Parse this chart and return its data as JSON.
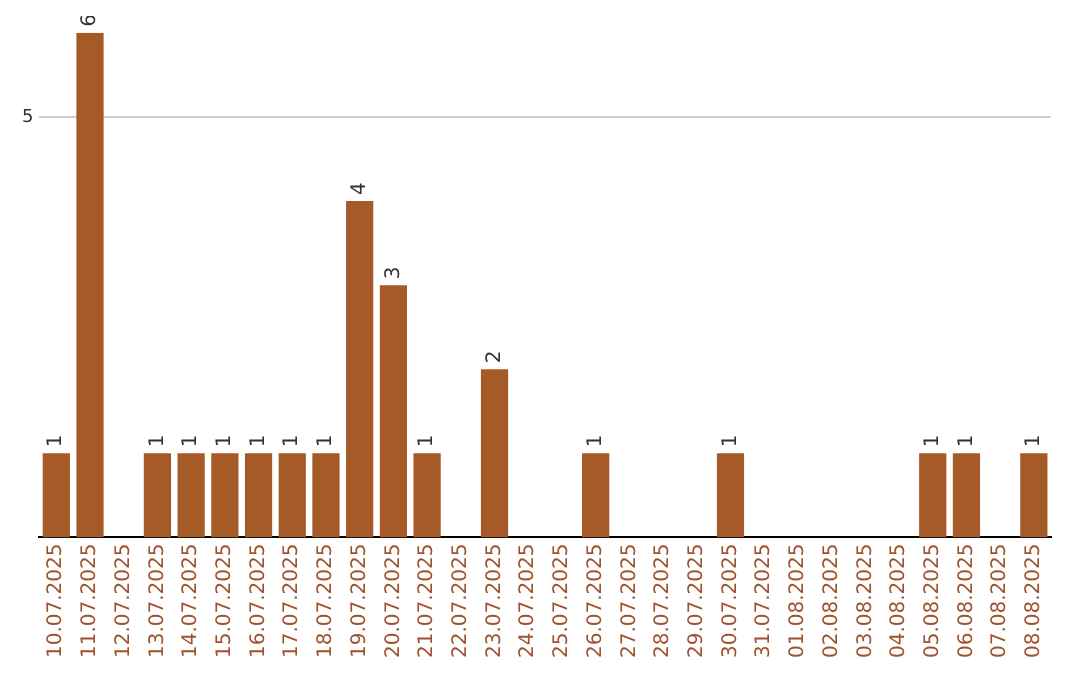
{
  "chart_data": {
    "type": "bar",
    "categories": [
      "10.07.2025",
      "11.07.2025",
      "12.07.2025",
      "13.07.2025",
      "14.07.2025",
      "15.07.2025",
      "16.07.2025",
      "17.07.2025",
      "18.07.2025",
      "19.07.2025",
      "20.07.2025",
      "21.07.2025",
      "22.07.2025",
      "23.07.2025",
      "24.07.2025",
      "25.07.2025",
      "26.07.2025",
      "27.07.2025",
      "28.07.2025",
      "29.07.2025",
      "30.07.2025",
      "31.07.2025",
      "01.08.2025",
      "02.08.2025",
      "03.08.2025",
      "04.08.2025",
      "05.08.2025",
      "06.08.2025",
      "07.08.2025",
      "08.08.2025"
    ],
    "values": [
      1,
      6,
      0,
      1,
      1,
      1,
      1,
      1,
      1,
      4,
      3,
      1,
      0,
      2,
      0,
      0,
      1,
      0,
      0,
      0,
      1,
      0,
      0,
      0,
      0,
      0,
      1,
      1,
      0,
      1
    ],
    "value_labels": [
      "1",
      "6",
      null,
      "1",
      "1",
      "1",
      "1",
      "1",
      "1",
      "4",
      "3",
      "1",
      null,
      "2",
      null,
      null,
      "1",
      null,
      null,
      null,
      "1",
      null,
      null,
      null,
      null,
      null,
      "1",
      "1",
      null,
      "1"
    ],
    "color": "#a65a28",
    "ylim": [
      0,
      6
    ],
    "yticks": [
      5
    ],
    "grid": "y",
    "legend": false
  }
}
